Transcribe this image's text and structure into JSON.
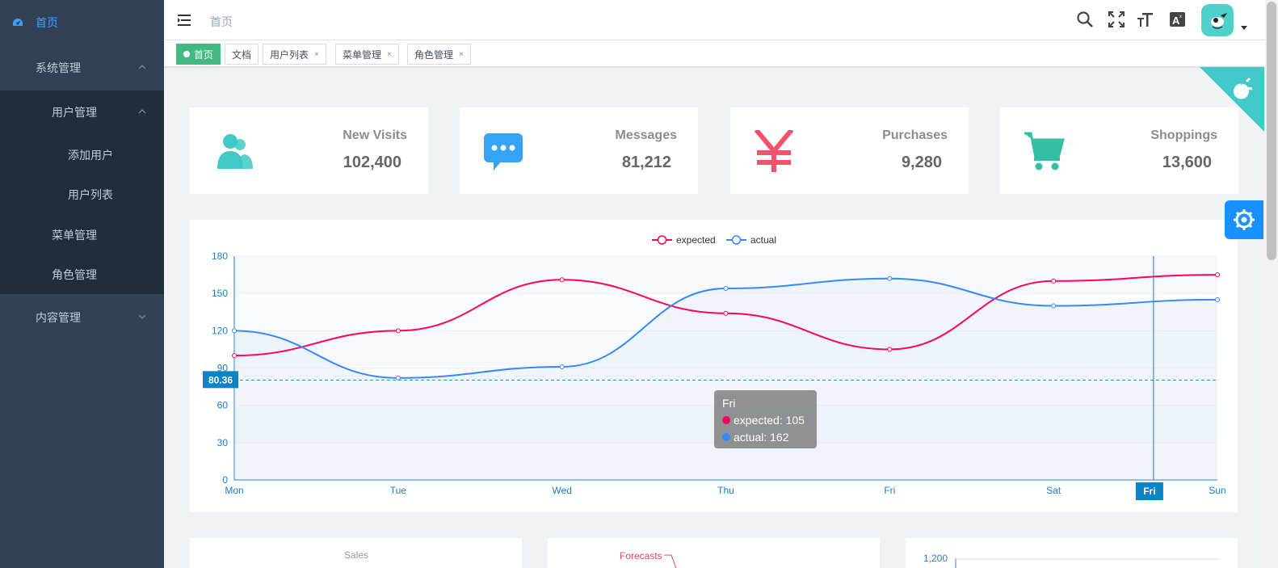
{
  "sidebar": {
    "items": [
      {
        "label": "首页",
        "level": 0,
        "active": true
      },
      {
        "label": "系统管理",
        "level": 0,
        "expanded": true
      },
      {
        "label": "用户管理",
        "level": 1,
        "expanded": true
      },
      {
        "label": "添加用户",
        "level": 2
      },
      {
        "label": "用户列表",
        "level": 2
      },
      {
        "label": "菜单管理",
        "level": 1
      },
      {
        "label": "角色管理",
        "level": 1
      },
      {
        "label": "内容管理",
        "level": 0,
        "expanded": false
      }
    ]
  },
  "navbar": {
    "breadcrumb": "首页"
  },
  "tags": [
    {
      "label": "首页",
      "active": true
    },
    {
      "label": "文档",
      "closable": false
    },
    {
      "label": "用户列表",
      "closable": true
    },
    {
      "label": "菜单管理",
      "closable": true
    },
    {
      "label": "角色管理",
      "closable": true
    }
  ],
  "tag_close_glyph": "×",
  "panels": [
    {
      "label": "New Visits",
      "value": "102,400",
      "icon": "peoples-icon",
      "color": "#40c9c6"
    },
    {
      "label": "Messages",
      "value": "81,212",
      "icon": "message-icon",
      "color": "#36a3f7"
    },
    {
      "label": "Purchases",
      "value": "9,280",
      "icon": "yen-icon",
      "color": "#f4516c"
    },
    {
      "label": "Shoppings",
      "value": "13,600",
      "icon": "shopping-cart-icon",
      "color": "#34bfa3"
    }
  ],
  "chart_data": {
    "type": "line",
    "categories": [
      "Mon",
      "Tue",
      "Wed",
      "Thu",
      "Fri",
      "Sat",
      "Sun"
    ],
    "series": [
      {
        "name": "expected",
        "values": [
          100,
          120,
          161,
          134,
          105,
          160,
          165
        ],
        "color": "#FF005A"
      },
      {
        "name": "actual",
        "values": [
          120,
          82,
          91,
          154,
          162,
          140,
          145
        ],
        "color": "#3888fa"
      }
    ],
    "ylim": [
      0,
      180
    ],
    "yticks": [
      0,
      30,
      60,
      90,
      120,
      150,
      180
    ],
    "legend_position": "top-center",
    "pointer": {
      "y_value": "80.36",
      "x_category": "Fri"
    },
    "tooltip": {
      "title": "Fri",
      "lines": [
        "expected: 105",
        "actual: 162"
      ]
    }
  },
  "bottom_charts": {
    "pie_title": "Sales",
    "radar_label": "Forecasts",
    "bar_tick": "1,200"
  }
}
